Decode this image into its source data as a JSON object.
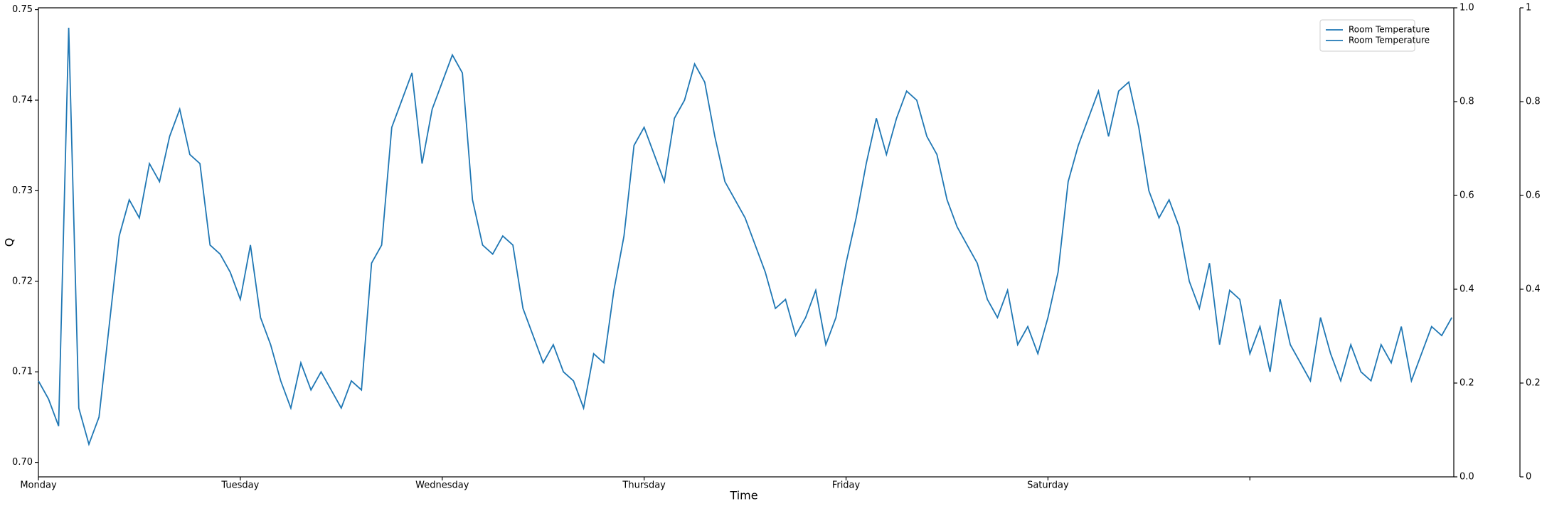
{
  "chart_data": {
    "type": "line",
    "xlabel": "Time",
    "ylabel": "Q",
    "x": [
      0,
      0.05,
      0.1,
      0.15,
      0.2,
      0.25,
      0.3,
      0.35,
      0.4,
      0.45,
      0.5,
      0.55,
      0.6,
      0.65,
      0.7,
      0.75,
      0.8,
      0.85,
      0.9,
      0.95,
      1,
      1.05,
      1.1,
      1.15,
      1.2,
      1.25,
      1.3,
      1.35,
      1.4,
      1.45,
      1.5,
      1.55,
      1.6,
      1.65,
      1.7,
      1.75,
      1.8,
      1.85,
      1.9,
      1.95,
      2,
      2.05,
      2.1,
      2.15,
      2.2,
      2.25,
      2.3,
      2.35,
      2.4,
      2.45,
      2.5,
      2.55,
      2.6,
      2.65,
      2.7,
      2.75,
      2.8,
      2.85,
      2.9,
      2.95,
      3,
      3.05,
      3.1,
      3.15,
      3.2,
      3.25,
      3.3,
      3.35,
      3.4,
      3.45,
      3.5,
      3.55,
      3.6,
      3.65,
      3.7,
      3.75,
      3.8,
      3.85,
      3.9,
      3.95,
      4,
      4.05,
      4.1,
      4.15,
      4.2,
      4.25,
      4.3,
      4.35,
      4.4,
      4.45,
      4.5,
      4.55,
      4.6,
      4.65,
      4.7,
      4.75,
      4.8,
      4.85,
      4.9,
      4.95,
      5,
      5.05,
      5.1,
      5.15,
      5.2,
      5.25,
      5.3,
      5.35,
      5.4,
      5.45,
      5.5,
      5.55,
      5.6,
      5.65,
      5.7,
      5.75,
      5.8,
      5.85,
      5.9,
      5.95,
      6,
      6.05,
      6.1,
      6.15,
      6.2,
      6.25,
      6.3,
      6.35,
      6.4,
      6.45,
      6.5,
      6.55,
      6.6,
      6.65,
      6.7,
      6.75,
      6.8,
      6.85,
      6.9,
      6.95,
      7
    ],
    "series": [
      {
        "name": "Room Temperature",
        "color": "#1f77b4",
        "values": [
          0.709,
          0.707,
          0.704,
          0.748,
          0.706,
          0.702,
          0.705,
          0.715,
          0.725,
          0.729,
          0.727,
          0.733,
          0.731,
          0.736,
          0.739,
          0.734,
          0.733,
          0.724,
          0.723,
          0.721,
          0.718,
          0.724,
          0.716,
          0.713,
          0.709,
          0.706,
          0.711,
          0.708,
          0.71,
          0.708,
          0.706,
          0.709,
          0.708,
          0.722,
          0.724,
          0.737,
          0.74,
          0.743,
          0.733,
          0.739,
          0.742,
          0.745,
          0.743,
          0.729,
          0.724,
          0.723,
          0.725,
          0.724,
          0.717,
          0.714,
          0.711,
          0.713,
          0.71,
          0.709,
          0.706,
          0.712,
          0.711,
          0.719,
          0.725,
          0.735,
          0.737,
          0.734,
          0.731,
          0.738,
          0.74,
          0.744,
          0.742,
          0.736,
          0.731,
          0.729,
          0.727,
          0.724,
          0.721,
          0.717,
          0.718,
          0.714,
          0.716,
          0.719,
          0.713,
          0.716,
          0.722,
          0.727,
          0.733,
          0.738,
          0.734,
          0.738,
          0.741,
          0.74,
          0.736,
          0.734,
          0.729,
          0.726,
          0.724,
          0.722,
          0.718,
          0.716,
          0.719,
          0.713,
          0.715,
          0.712,
          0.716,
          0.721,
          0.731,
          0.735,
          0.738,
          0.741,
          0.736,
          0.741,
          0.742,
          0.737,
          0.73,
          0.727,
          0.729,
          0.726,
          0.72,
          0.717,
          0.722,
          0.713,
          0.719,
          0.718,
          0.712,
          0.715,
          0.71,
          0.718,
          0.713,
          0.711,
          0.709,
          0.716,
          0.712,
          0.709,
          0.713,
          0.71,
          0.709,
          0.713,
          0.711,
          0.715,
          0.709,
          0.712,
          0.715,
          0.714,
          0.716
        ]
      }
    ],
    "legend": {
      "loc": "upper right",
      "entries": [
        "Room Temperature",
        "Room Temperature"
      ]
    },
    "xlim": [
      0,
      7.01
    ],
    "xticks": [
      {
        "value": 0,
        "label": "Monday"
      },
      {
        "value": 1,
        "label": "Tuesday"
      },
      {
        "value": 2,
        "label": "Wednesday"
      },
      {
        "value": 3,
        "label": "Thursday"
      },
      {
        "value": 4,
        "label": "Friday"
      },
      {
        "value": 5,
        "label": "Saturday"
      },
      {
        "value": 6,
        "label": null
      }
    ],
    "ylim": [
      0.6984,
      0.7502
    ],
    "yticks": [
      {
        "value": 0.7,
        "label": "0.70"
      },
      {
        "value": 0.71,
        "label": "0.71"
      },
      {
        "value": 0.72,
        "label": "0.72"
      },
      {
        "value": 0.73,
        "label": "0.73"
      },
      {
        "value": 0.74,
        "label": "0.74"
      },
      {
        "value": 0.75,
        "label": "0.75"
      }
    ],
    "y2lim": [
      0,
      1
    ],
    "y2ticks": [
      {
        "value": 0,
        "label": "0.0"
      },
      {
        "value": 0.2,
        "label": "0.2"
      },
      {
        "value": 0.4,
        "label": "0.4"
      },
      {
        "value": 0.6,
        "label": "0.6"
      },
      {
        "value": 0.8,
        "label": "0.8"
      },
      {
        "value": 1,
        "label": "1.0"
      }
    ],
    "y3lim": [
      0,
      1
    ],
    "y3ticks": [
      0,
      0.2,
      0.4,
      0.6,
      0.8,
      1
    ]
  }
}
